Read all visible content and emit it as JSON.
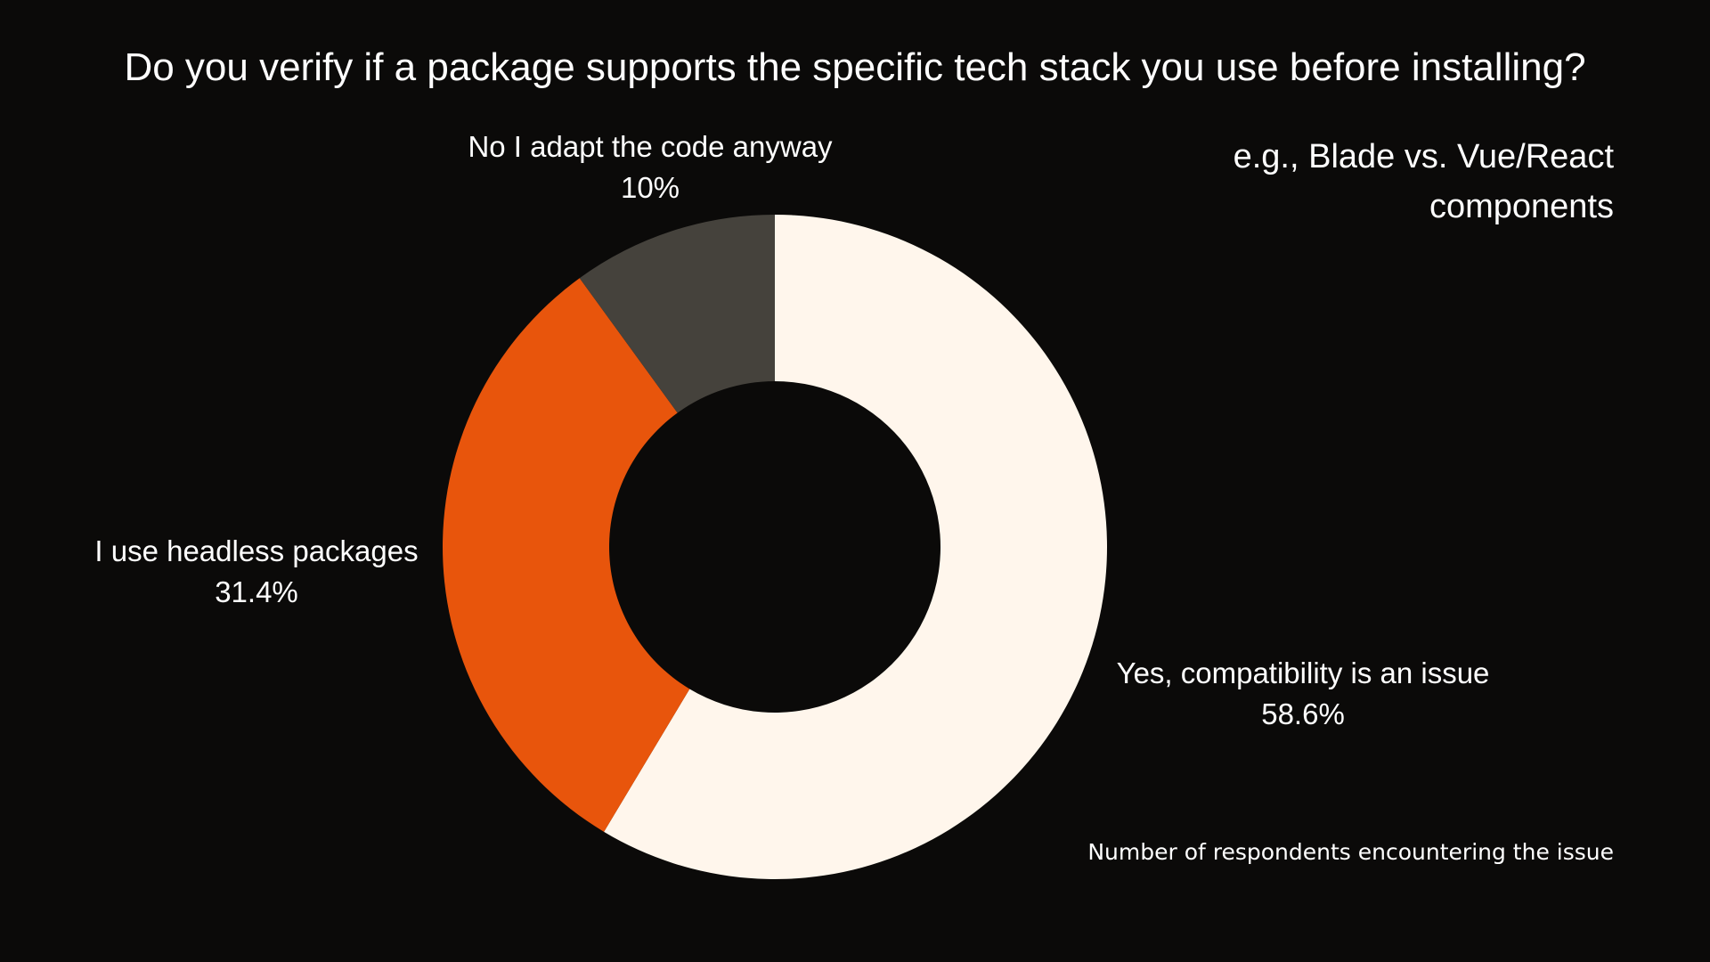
{
  "title": "Do you verify if a package supports the specific tech stack you use before installing?",
  "note": "e.g., Blade vs. Vue/React components",
  "footnote": "Number of respondents encountering the issue",
  "chart_data": {
    "type": "pie",
    "variant": "donut",
    "title": "Do you verify if a package supports the specific tech stack you use before installing?",
    "slices": [
      {
        "label": "Yes, compatibility is an issue",
        "value": 58.6,
        "value_label": "58.6%",
        "color": "#fff6ec"
      },
      {
        "label": "I use headless packages",
        "value": 31.4,
        "value_label": "31.4%",
        "color": "#e8550c"
      },
      {
        "label": "No I adapt the code anyway",
        "value": 10,
        "value_label": "10%",
        "color": "#45423c"
      }
    ],
    "start_angle": "12 o'clock",
    "direction": "clockwise",
    "legend": "none"
  },
  "colors": {
    "background": "#0b0a09",
    "text": "#ffffff"
  }
}
